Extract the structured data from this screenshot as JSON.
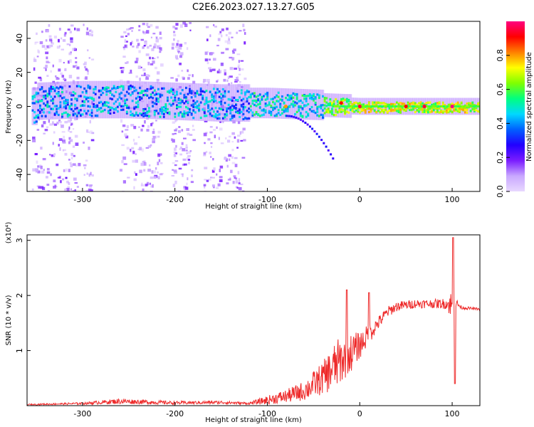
{
  "chart_data": [
    {
      "type": "heatmap",
      "title": "C2E6.2023.027.13.27.G05",
      "xlabel": "Height of straight line (km)",
      "ylabel": "Frequency (Hz)",
      "xlim": [
        -360,
        130
      ],
      "ylim": [
        -50,
        50
      ],
      "x_ticks": [
        -300,
        -200,
        -100,
        0,
        100
      ],
      "y_ticks": [
        -40,
        -20,
        0,
        20,
        40
      ],
      "colorbar": {
        "label": "Normalized spectral amplitude",
        "range": [
          0.0,
          1.0
        ],
        "ticks": [
          "0.0",
          "0.2",
          "0.4",
          "0.6",
          "0.8"
        ],
        "colormap": [
          "#e8d8ff",
          "#c9a8ff",
          "#7a1cff",
          "#2200ff",
          "#0060ff",
          "#00d8ff",
          "#00ff80",
          "#7fff00",
          "#ffff00",
          "#ff8000",
          "#ff0000",
          "#ff0080"
        ]
      },
      "band_center_hz": [
        {
          "x": -350,
          "f": 3
        },
        {
          "x": -300,
          "f": 4
        },
        {
          "x": -250,
          "f": 4
        },
        {
          "x": -200,
          "f": 3
        },
        {
          "x": -150,
          "f": 2
        },
        {
          "x": -100,
          "f": 2
        },
        {
          "x": -50,
          "f": 1
        },
        {
          "x": 0,
          "f": 0
        },
        {
          "x": 50,
          "f": 0
        },
        {
          "x": 100,
          "f": 0
        },
        {
          "x": 130,
          "f": 0
        }
      ],
      "noise_strips_km": [
        [
          -355,
          -305
        ],
        [
          -300,
          -290
        ],
        [
          -260,
          -215
        ],
        [
          -205,
          -180
        ],
        [
          -170,
          -125
        ]
      ],
      "tail_feature": {
        "from": [
          -80,
          -5
        ],
        "to": [
          -30,
          -30
        ]
      },
      "hotspots": [
        {
          "x": -80,
          "f": 0,
          "amp": 0.8
        },
        {
          "x": -20,
          "f": 2,
          "amp": 0.9
        },
        {
          "x": 0,
          "f": 0,
          "amp": 0.95
        },
        {
          "x": 50,
          "f": 0,
          "amp": 0.9
        },
        {
          "x": 70,
          "f": 0,
          "amp": 0.95
        },
        {
          "x": 100,
          "f": 0,
          "amp": 1.0
        }
      ]
    },
    {
      "type": "line",
      "title": "",
      "xlabel": "Height of straight line (km)",
      "ylabel": "SNR (10 * v/v)",
      "y_multiplier": "(x10⁴)",
      "xlim": [
        -360,
        130
      ],
      "ylim": [
        0,
        3.1
      ],
      "x_ticks": [
        -300,
        -200,
        -100,
        0,
        100
      ],
      "y_ticks": [
        1,
        2,
        3
      ],
      "color": "#ee2a2a",
      "series": [
        {
          "x": [
            -360,
            -300,
            -260,
            -200,
            -150,
            -120,
            -100,
            -80,
            -60,
            -40,
            -25,
            -10,
            0,
            20,
            30,
            40,
            60,
            80,
            95,
            100,
            102,
            110,
            130
          ],
          "values": [
            0.02,
            0.04,
            0.08,
            0.05,
            0.06,
            0.04,
            0.1,
            0.17,
            0.27,
            0.5,
            0.75,
            0.95,
            1.1,
            1.5,
            1.7,
            1.8,
            1.85,
            1.85,
            1.85,
            1.8,
            1.9,
            1.78,
            1.75
          ],
          "noise": [
            0.01,
            0.02,
            0.05,
            0.03,
            0.03,
            0.02,
            0.08,
            0.12,
            0.18,
            0.3,
            0.45,
            0.35,
            0.25,
            0.12,
            0.1,
            0.09,
            0.08,
            0.08,
            0.1,
            0.35,
            0.1,
            0.03,
            0.02
          ]
        }
      ],
      "peaks": [
        {
          "x": -14,
          "value": 2.1
        },
        {
          "x": 10,
          "value": 2.05
        },
        {
          "x": 101,
          "value": 3.05
        },
        {
          "x": 103,
          "value": 0.4
        }
      ]
    }
  ]
}
